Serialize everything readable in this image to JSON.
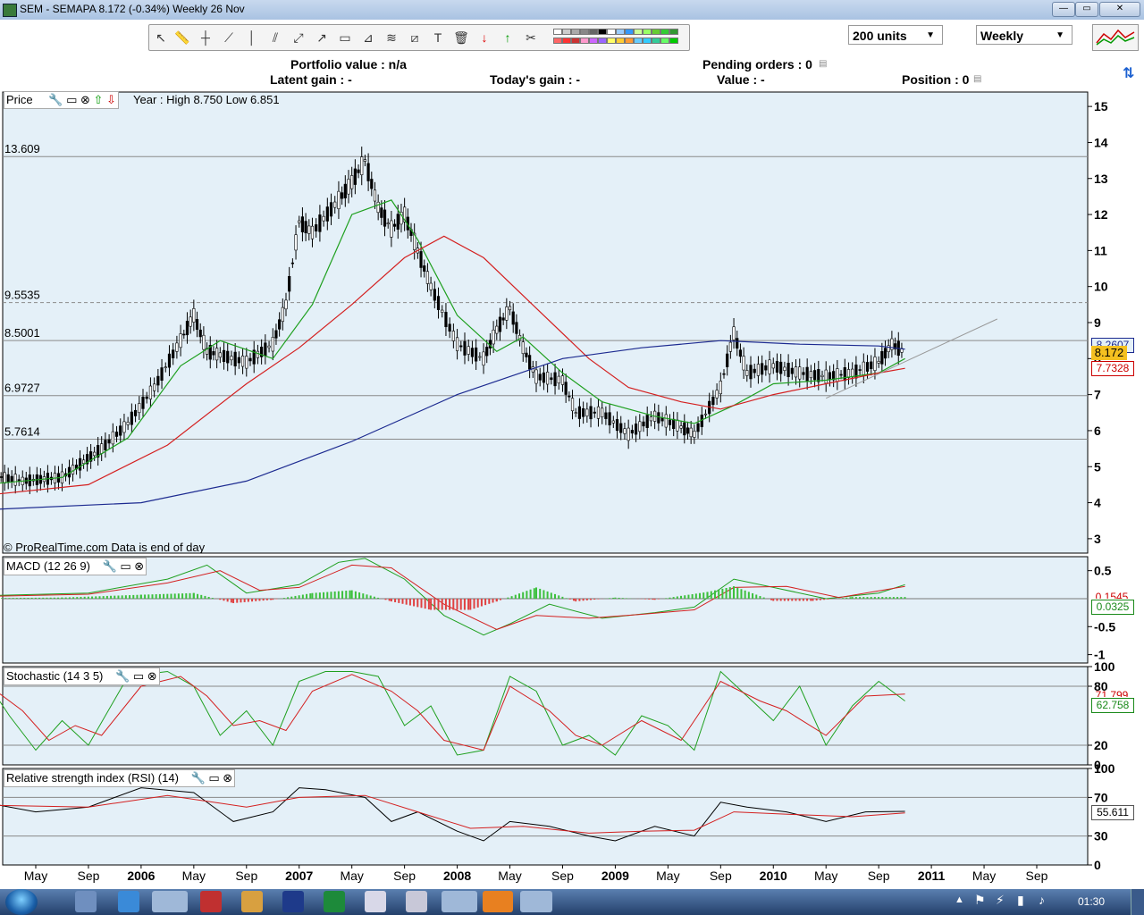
{
  "window": {
    "title": "SEM - SEMAPA    8.172 (-0.34%)     Weekly  26 Nov"
  },
  "toolbar": {
    "quantity": "200 units",
    "timeframe": "Weekly"
  },
  "info": {
    "portfolio_value": "Portfolio value : n/a",
    "latent_gain": "Latent gain : -",
    "todays_gain": "Today's gain : -",
    "pending_orders": "Pending orders : 0",
    "value": "Value : -",
    "position": "Position : 0"
  },
  "price_panel": {
    "label": "Price",
    "year_info": "Year : High 8.750 Low 6.851",
    "copyright": "© ProRealTime.com Data is end of day",
    "last_price": "8.172",
    "ma_value_1": "8.2607",
    "ma_value_2": "7.7328",
    "hlines": [
      {
        "label": "13.609",
        "value": 13.609
      },
      {
        "label": "9.5535",
        "value": 9.5535
      },
      {
        "label": "8.5001",
        "value": 8.5001
      },
      {
        "label": "6.9727",
        "value": 6.9727
      },
      {
        "label": "5.7614",
        "value": 5.7614
      }
    ]
  },
  "macd_panel": {
    "label": "MACD (12 26 9)",
    "last_value": "0.0325",
    "hidden_value": "0.1545"
  },
  "stoch_panel": {
    "label": "Stochastic (14 3 5)",
    "value_1": "71.799",
    "value_2": "62.758"
  },
  "rsi_panel": {
    "label": "Relative strength index (RSI) (14)",
    "value": "55.611"
  },
  "colors": {
    "bg": "#e4f0f8",
    "green": "#1fa01f",
    "red": "#d42020",
    "blue": "#1c2a90",
    "candle": "#000000"
  },
  "chart_data": [
    {
      "type": "line",
      "title": "Price",
      "ylim": [
        2.6,
        15.4
      ],
      "yticks": [
        3,
        4,
        5,
        6,
        7,
        8,
        9,
        10,
        11,
        12,
        13,
        14,
        15
      ],
      "x_tick_labels": [
        "May",
        "Sep",
        "2006",
        "May",
        "Sep",
        "2007",
        "May",
        "Sep",
        "2008",
        "May",
        "Sep",
        "2009",
        "May",
        "Sep",
        "2010",
        "May",
        "Sep",
        "2011",
        "May",
        "Sep"
      ],
      "x_tick_dates": [
        "2005-05",
        "2005-09",
        "2006-01",
        "2006-05",
        "2006-09",
        "2007-01",
        "2007-05",
        "2007-09",
        "2008-01",
        "2008-05",
        "2008-09",
        "2009-01",
        "2009-05",
        "2009-09",
        "2010-01",
        "2010-05",
        "2010-09",
        "2011-01",
        "2011-05",
        "2011-09"
      ],
      "series": [
        {
          "role": "close",
          "x": [
            "2005-01",
            "2005-04",
            "2005-07",
            "2005-10",
            "2005-12",
            "2006-02",
            "2006-04",
            "2006-05",
            "2006-06",
            "2006-07",
            "2006-09",
            "2006-11",
            "2006-12",
            "2007-01",
            "2007-02",
            "2007-04",
            "2007-05",
            "2007-06",
            "2007-07",
            "2007-08",
            "2007-09",
            "2007-10",
            "2007-11",
            "2008-01",
            "2008-03",
            "2008-04",
            "2008-05",
            "2008-06",
            "2008-07",
            "2008-09",
            "2008-10",
            "2008-12",
            "2009-02",
            "2009-04",
            "2009-06",
            "2009-07",
            "2009-09",
            "2009-10",
            "2009-11",
            "2010-01",
            "2010-03",
            "2010-05",
            "2010-07",
            "2010-09",
            "2010-10",
            "2010-11"
          ],
          "values": [
            4.8,
            4.6,
            4.7,
            5.5,
            6.2,
            7.2,
            8.5,
            9.2,
            8.2,
            8.1,
            7.9,
            8.4,
            9.5,
            11.8,
            11.5,
            12.4,
            12.9,
            13.5,
            12.2,
            11.6,
            12.0,
            11.0,
            10.0,
            8.4,
            8.0,
            8.8,
            9.4,
            8.3,
            7.5,
            7.4,
            6.5,
            6.5,
            5.9,
            6.4,
            6.1,
            5.9,
            7.2,
            8.7,
            7.6,
            7.8,
            7.6,
            7.5,
            7.6,
            7.9,
            8.4,
            8.17
          ]
        },
        {
          "role": "ma-short",
          "x": [
            "2005-01",
            "2005-07",
            "2005-12",
            "2006-04",
            "2006-07",
            "2006-11",
            "2007-02",
            "2007-05",
            "2007-08",
            "2007-10",
            "2008-01",
            "2008-04",
            "2008-06",
            "2008-09",
            "2008-12",
            "2009-04",
            "2009-07",
            "2009-10",
            "2010-01",
            "2010-05",
            "2010-09",
            "2010-11"
          ],
          "values": [
            4.5,
            4.7,
            5.8,
            7.8,
            8.5,
            8.0,
            9.5,
            12.0,
            12.4,
            11.3,
            9.2,
            8.2,
            8.6,
            7.6,
            6.8,
            6.4,
            6.2,
            6.7,
            7.3,
            7.4,
            7.6,
            8.0
          ]
        },
        {
          "role": "ma-medium",
          "x": [
            "2005-01",
            "2005-09",
            "2006-03",
            "2006-09",
            "2007-01",
            "2007-05",
            "2007-09",
            "2007-12",
            "2008-03",
            "2008-07",
            "2008-11",
            "2009-02",
            "2009-06",
            "2009-09",
            "2010-01",
            "2010-05",
            "2010-09",
            "2010-11"
          ],
          "values": [
            4.2,
            4.5,
            5.6,
            7.3,
            8.3,
            9.5,
            10.8,
            11.4,
            10.8,
            9.4,
            8.0,
            7.2,
            6.8,
            6.6,
            7.0,
            7.3,
            7.6,
            7.73
          ]
        },
        {
          "role": "ma-long",
          "x": [
            "2005-01",
            "2006-01",
            "2006-09",
            "2007-05",
            "2008-01",
            "2008-09",
            "2009-03",
            "2009-09",
            "2010-03",
            "2010-09",
            "2010-11"
          ],
          "values": [
            3.8,
            4.0,
            4.6,
            5.7,
            7.0,
            8.0,
            8.3,
            8.5,
            8.4,
            8.35,
            8.26
          ]
        },
        {
          "role": "trendline",
          "x": [
            "2010-05",
            "2011-06"
          ],
          "values": [
            6.9,
            9.1
          ]
        }
      ]
    },
    {
      "type": "line",
      "title": "MACD (12 26 9)",
      "ylim": [
        -1.15,
        0.75
      ],
      "yticks": [
        0.5,
        -0.5,
        -1
      ],
      "series": [
        {
          "role": "macd",
          "x": [
            "2005-01",
            "2005-09",
            "2006-03",
            "2006-06",
            "2006-09",
            "2007-01",
            "2007-04",
            "2007-06",
            "2007-09",
            "2007-12",
            "2008-03",
            "2008-05",
            "2008-08",
            "2008-12",
            "2009-04",
            "2009-07",
            "2009-10",
            "2010-01",
            "2010-05",
            "2010-09",
            "2010-11"
          ],
          "values": [
            0.05,
            0.1,
            0.35,
            0.6,
            0.1,
            0.25,
            0.65,
            0.72,
            0.35,
            -0.3,
            -0.65,
            -0.45,
            -0.1,
            -0.35,
            -0.25,
            -0.15,
            0.35,
            0.2,
            0.0,
            0.1,
            0.25
          ]
        },
        {
          "role": "signal",
          "x": [
            "2005-01",
            "2005-09",
            "2006-03",
            "2006-07",
            "2006-10",
            "2007-01",
            "2007-05",
            "2007-08",
            "2007-12",
            "2008-04",
            "2008-07",
            "2008-11",
            "2009-03",
            "2009-07",
            "2009-10",
            "2010-02",
            "2010-06",
            "2010-11"
          ],
          "values": [
            0.04,
            0.08,
            0.28,
            0.5,
            0.15,
            0.2,
            0.6,
            0.55,
            -0.1,
            -0.55,
            -0.3,
            -0.35,
            -0.28,
            -0.2,
            0.2,
            0.22,
            0.02,
            0.22
          ]
        },
        {
          "role": "histogram",
          "x": [
            "2005-01",
            "2005-07",
            "2006-01",
            "2006-05",
            "2006-08",
            "2006-11",
            "2007-02",
            "2007-05",
            "2007-08",
            "2007-11",
            "2008-02",
            "2008-04",
            "2008-07",
            "2008-10",
            "2009-01",
            "2009-04",
            "2009-08",
            "2009-10",
            "2010-01",
            "2010-04",
            "2010-07",
            "2010-11"
          ],
          "values": [
            0.01,
            0.02,
            0.07,
            0.1,
            -0.08,
            -0.02,
            0.1,
            0.15,
            -0.05,
            -0.2,
            -0.2,
            -0.05,
            0.2,
            -0.05,
            0.02,
            -0.02,
            0.12,
            0.22,
            -0.04,
            -0.04,
            0.03,
            0.03
          ]
        }
      ]
    },
    {
      "type": "line",
      "title": "Stochastic (14 3 5)",
      "ylim": [
        0,
        100
      ],
      "yticks": [
        100,
        80,
        20,
        0
      ],
      "series": [
        {
          "role": "k",
          "x": [
            "2005-01",
            "2005-03",
            "2005-05",
            "2005-07",
            "2005-09",
            "2005-12",
            "2006-03",
            "2006-05",
            "2006-07",
            "2006-09",
            "2006-11",
            "2007-01",
            "2007-03",
            "2007-05",
            "2007-07",
            "2007-09",
            "2007-11",
            "2008-01",
            "2008-03",
            "2008-05",
            "2008-07",
            "2008-09",
            "2008-11",
            "2009-01",
            "2009-03",
            "2009-05",
            "2009-07",
            "2009-09",
            "2009-11",
            "2010-01",
            "2010-03",
            "2010-05",
            "2010-07",
            "2010-09",
            "2010-11"
          ],
          "values": [
            90,
            50,
            15,
            45,
            20,
            90,
            95,
            80,
            30,
            55,
            20,
            85,
            95,
            95,
            90,
            40,
            60,
            10,
            15,
            90,
            75,
            20,
            30,
            10,
            50,
            40,
            15,
            95,
            70,
            45,
            80,
            20,
            60,
            85,
            65
          ]
        },
        {
          "role": "d",
          "x": [
            "2005-01",
            "2005-04",
            "2005-06",
            "2005-08",
            "2005-10",
            "2006-01",
            "2006-04",
            "2006-06",
            "2006-08",
            "2006-10",
            "2006-12",
            "2007-02",
            "2007-05",
            "2007-08",
            "2007-10",
            "2007-12",
            "2008-03",
            "2008-05",
            "2008-08",
            "2008-10",
            "2008-12",
            "2009-03",
            "2009-06",
            "2009-09",
            "2009-12",
            "2010-02",
            "2010-05",
            "2010-08",
            "2010-11"
          ],
          "values": [
            85,
            55,
            25,
            40,
            30,
            80,
            90,
            70,
            40,
            45,
            35,
            75,
            92,
            75,
            55,
            25,
            15,
            80,
            55,
            30,
            20,
            45,
            25,
            85,
            65,
            55,
            30,
            70,
            72
          ]
        }
      ]
    },
    {
      "type": "line",
      "title": "Relative strength index (RSI) (14)",
      "ylim": [
        0,
        100
      ],
      "yticks": [
        100,
        70,
        30,
        0
      ],
      "series": [
        {
          "role": "rsi",
          "x": [
            "2005-01",
            "2005-05",
            "2005-09",
            "2006-01",
            "2006-05",
            "2006-08",
            "2006-11",
            "2007-01",
            "2007-03",
            "2007-06",
            "2007-08",
            "2007-10",
            "2008-01",
            "2008-03",
            "2008-05",
            "2008-08",
            "2008-11",
            "2009-01",
            "2009-04",
            "2009-07",
            "2009-09",
            "2009-11",
            "2010-02",
            "2010-05",
            "2010-08",
            "2010-11"
          ],
          "values": [
            65,
            55,
            60,
            80,
            75,
            45,
            55,
            80,
            78,
            70,
            45,
            55,
            35,
            25,
            45,
            40,
            30,
            25,
            40,
            30,
            65,
            60,
            55,
            45,
            55,
            55.6
          ]
        },
        {
          "role": "rsi-ma",
          "x": [
            "2005-01",
            "2005-09",
            "2006-03",
            "2006-09",
            "2007-01",
            "2007-06",
            "2007-10",
            "2008-02",
            "2008-06",
            "2008-11",
            "2009-03",
            "2009-07",
            "2009-10",
            "2010-03",
            "2010-07",
            "2010-11"
          ],
          "values": [
            62,
            60,
            72,
            60,
            70,
            72,
            55,
            38,
            40,
            33,
            35,
            36,
            55,
            52,
            50,
            54
          ]
        }
      ]
    }
  ]
}
